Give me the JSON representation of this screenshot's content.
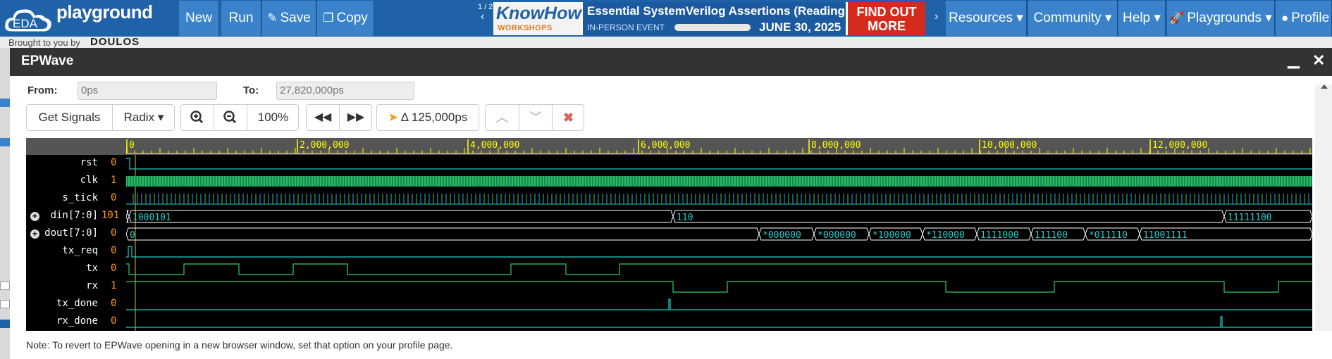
{
  "navbar": {
    "logo_abbrev": "EDA",
    "logo_text": "playground",
    "buttons": {
      "new": "New",
      "run": "Run",
      "save": "Save",
      "copy": "Copy"
    },
    "ad_pager": "1 / 2",
    "ad": {
      "brand": "KnowHow",
      "brand_sub": "WORKSHOPS",
      "title": "Essential SystemVerilog Assertions (Reading, UK)",
      "event": "IN-PERSON EVENT",
      "date": "JUNE 30, 2025",
      "cta": "FIND OUT MORE"
    },
    "menus": {
      "resources": "Resources",
      "community": "Community",
      "help": "Help",
      "playgrounds": "Playgrounds",
      "profile": "Profile"
    }
  },
  "background": {
    "brought_by": "Brought to you by",
    "sponsor": "DOULOS"
  },
  "epwave": {
    "title": "EPWave",
    "from_label": "From:",
    "from_value": "0ps",
    "to_label": "To:",
    "to_value": "27,820,000ps",
    "toolbar": {
      "get_signals": "Get Signals",
      "radix": "Radix",
      "zoom_level": "100%",
      "delta": "Δ 125,000ps"
    },
    "timeline_ticks": [
      "0",
      "2,000,000",
      "4,000,000",
      "6,000,000",
      "8,000,000",
      "10,000,000",
      "12,000,000"
    ],
    "signals": [
      {
        "name": "rst",
        "value": "0"
      },
      {
        "name": "clk",
        "value": "1"
      },
      {
        "name": "s_tick",
        "value": "0"
      },
      {
        "name": "din[7:0]",
        "value": "101",
        "expandable": true
      },
      {
        "name": "dout[7:0]",
        "value": "0",
        "expandable": true
      },
      {
        "name": "tx_req",
        "value": "0"
      },
      {
        "name": "tx",
        "value": "0"
      },
      {
        "name": "rx",
        "value": "1"
      },
      {
        "name": "tx_done",
        "value": "0"
      },
      {
        "name": "rx_done",
        "value": "0"
      }
    ],
    "din_segments": [
      "1000101",
      "110",
      "11111100"
    ],
    "dout_segments": [
      "0",
      "*000000",
      "*000000",
      "*100000",
      "*110000",
      "1111000",
      "111100",
      "*011110",
      "11001111"
    ],
    "note": "Note: To revert to EPWave opening in a new browser window, set that option on your profile page."
  },
  "colors": {
    "navbar": "#1f62a8",
    "nav_button": "#3a82c9",
    "wave_green": "#33cc66",
    "wave_cyan": "#22cccc",
    "timeline_yellow": "#ffff00",
    "value_orange": "#ff9900"
  }
}
